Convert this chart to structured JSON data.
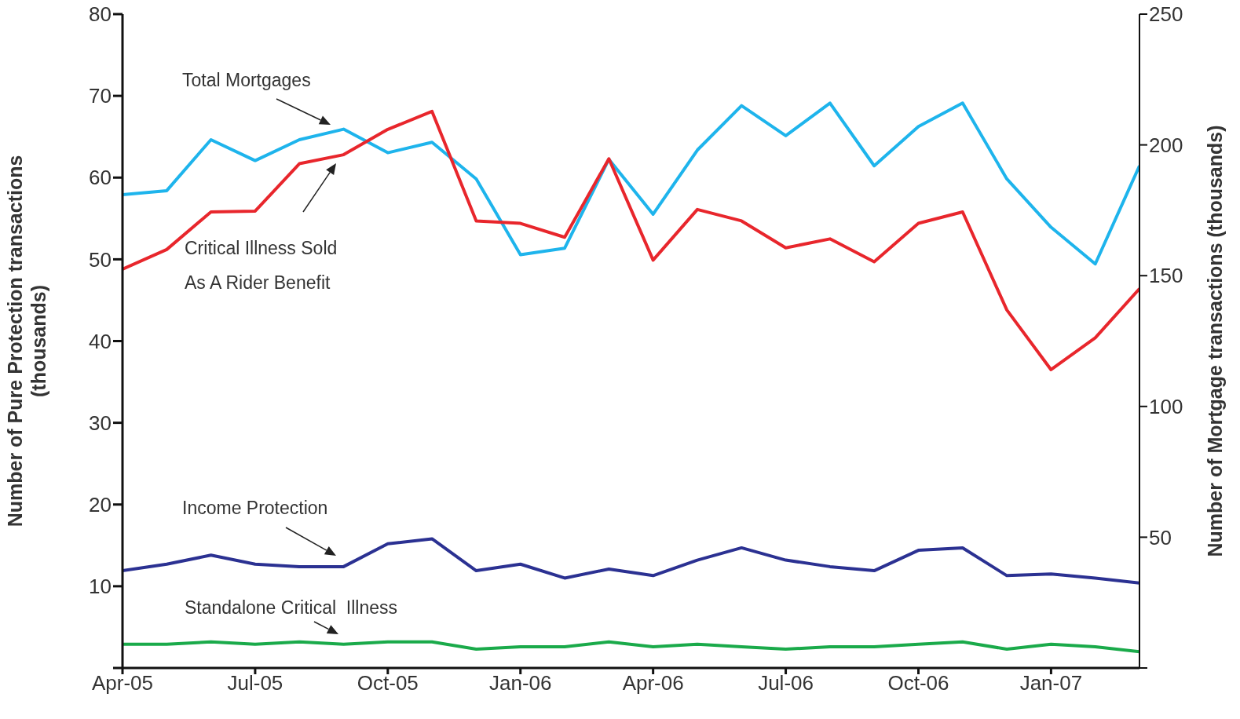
{
  "chart_data": {
    "type": "line",
    "ylabel": "Number of Pure Protection transactions (thousands)",
    "y2label": "Number of Mortgage transactions (thousands)",
    "categories": [
      "Apr-05",
      null,
      null,
      "Jul-05",
      null,
      null,
      "Oct-05",
      null,
      null,
      "Jan-06",
      null,
      null,
      "Apr-06",
      null,
      null,
      "Jul-06",
      null,
      null,
      "Oct-06",
      null,
      null,
      "Jan-07",
      null,
      null
    ],
    "series": [
      {
        "name": "Total Mortgages",
        "color": "#1eb4ec",
        "axis": "y2",
        "values": [
          181,
          182.5,
          202,
          194,
          202,
          206,
          197,
          201,
          187,
          158,
          160.5,
          194.5,
          173.5,
          198,
          215,
          203.5,
          216,
          192,
          207,
          216,
          187,
          168.5,
          154.5,
          192
        ]
      },
      {
        "name": "Critical Illness Sold As A Rider Benefit",
        "color": "#e8262c",
        "values": [
          48.8,
          51.2,
          55.8,
          55.9,
          61.7,
          62.8,
          65.9,
          68.1,
          54.7,
          54.4,
          52.7,
          62.3,
          49.9,
          56.1,
          54.7,
          51.4,
          52.5,
          49.7,
          54.4,
          55.8,
          43.8,
          36.5,
          40.4,
          46.4
        ]
      },
      {
        "name": "Income Protection",
        "color": "#2b3192",
        "values": [
          11.9,
          12.7,
          13.8,
          12.7,
          12.4,
          12.4,
          15.2,
          15.8,
          11.9,
          12.7,
          11.0,
          12.1,
          11.3,
          13.2,
          14.7,
          13.2,
          12.4,
          11.9,
          14.4,
          14.7,
          11.3,
          11.5,
          11.0,
          10.4
        ]
      },
      {
        "name": "Standalone Critical  Illness",
        "color": "#1aaa4a",
        "values": [
          2.9,
          2.9,
          3.2,
          2.9,
          3.2,
          2.9,
          3.2,
          3.2,
          2.3,
          2.6,
          2.6,
          3.2,
          2.6,
          2.9,
          2.6,
          2.3,
          2.6,
          2.6,
          2.9,
          3.2,
          2.3,
          2.9,
          2.6,
          2.0
        ]
      }
    ],
    "ylim": [
      0,
      80
    ],
    "yticks": [
      {
        "value": 0,
        "label": null
      },
      10,
      20,
      30,
      40,
      50,
      60,
      70,
      80
    ],
    "y2lim": [
      0,
      250
    ],
    "y2ticks": [
      {
        "value": 0,
        "label": null
      },
      50,
      100,
      150,
      200,
      250
    ],
    "legend": false,
    "marker": "none",
    "line_style": "solid"
  }
}
